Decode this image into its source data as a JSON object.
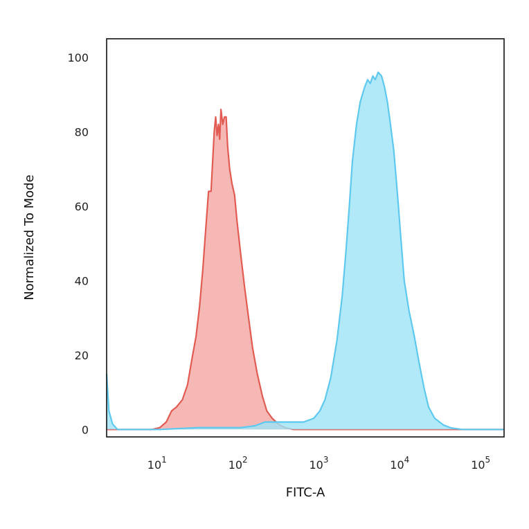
{
  "chart_data": {
    "type": "area",
    "xlabel": "FITC-A",
    "ylabel": "Normalized To Mode",
    "xscale": "log",
    "xlim": [
      2.2,
      180000
    ],
    "ylim": [
      -2,
      105
    ],
    "y_ticks": [
      0,
      20,
      40,
      60,
      80,
      100
    ],
    "x_ticks": [
      {
        "value": 10,
        "base": "10",
        "exp": "1"
      },
      {
        "value": 100,
        "base": "10",
        "exp": "2"
      },
      {
        "value": 1000,
        "base": "10",
        "exp": "3"
      },
      {
        "value": 10000,
        "base": "10",
        "exp": "4"
      },
      {
        "value": 100000,
        "base": "10",
        "exp": "5"
      }
    ],
    "grid": false,
    "legend": "none",
    "series": [
      {
        "stroke": "#e15b52",
        "fill": "#f2a6a3",
        "points": [
          [
            2.2,
            0
          ],
          [
            3,
            0
          ],
          [
            5,
            0
          ],
          [
            8,
            0
          ],
          [
            10,
            0.5
          ],
          [
            12,
            2
          ],
          [
            14,
            5
          ],
          [
            16,
            6
          ],
          [
            19,
            8
          ],
          [
            22,
            12
          ],
          [
            25,
            19
          ],
          [
            28,
            25
          ],
          [
            31,
            33
          ],
          [
            34,
            43
          ],
          [
            37,
            54
          ],
          [
            40,
            64
          ],
          [
            43,
            64
          ],
          [
            45,
            72
          ],
          [
            47,
            80
          ],
          [
            49,
            84
          ],
          [
            51,
            79
          ],
          [
            53,
            82
          ],
          [
            55,
            78
          ],
          [
            57,
            86
          ],
          [
            60,
            82
          ],
          [
            63,
            84
          ],
          [
            66,
            84
          ],
          [
            69,
            76
          ],
          [
            73,
            70
          ],
          [
            78,
            66
          ],
          [
            84,
            63
          ],
          [
            90,
            56
          ],
          [
            100,
            47
          ],
          [
            112,
            38
          ],
          [
            125,
            30
          ],
          [
            140,
            22
          ],
          [
            160,
            15
          ],
          [
            185,
            9
          ],
          [
            210,
            5
          ],
          [
            245,
            3
          ],
          [
            290,
            1.5
          ],
          [
            350,
            0.5
          ],
          [
            450,
            0
          ],
          [
            180000,
            0
          ]
        ]
      },
      {
        "stroke": "#5ec8ee",
        "fill": "#9ee3f8",
        "points": [
          [
            2.2,
            15
          ],
          [
            2.35,
            5
          ],
          [
            2.6,
            1.5
          ],
          [
            3,
            0
          ],
          [
            5,
            0
          ],
          [
            10,
            0
          ],
          [
            30,
            0.5
          ],
          [
            100,
            0.5
          ],
          [
            150,
            1
          ],
          [
            200,
            2
          ],
          [
            300,
            2
          ],
          [
            400,
            2
          ],
          [
            600,
            2
          ],
          [
            800,
            3
          ],
          [
            950,
            5
          ],
          [
            1100,
            8
          ],
          [
            1300,
            14
          ],
          [
            1550,
            24
          ],
          [
            1800,
            36
          ],
          [
            2000,
            48
          ],
          [
            2200,
            60
          ],
          [
            2400,
            72
          ],
          [
            2700,
            82
          ],
          [
            3000,
            88
          ],
          [
            3400,
            92
          ],
          [
            3700,
            94
          ],
          [
            4000,
            93
          ],
          [
            4300,
            95
          ],
          [
            4600,
            94
          ],
          [
            5000,
            96
          ],
          [
            5500,
            95
          ],
          [
            6000,
            92
          ],
          [
            6500,
            88
          ],
          [
            7000,
            83
          ],
          [
            7800,
            75
          ],
          [
            8600,
            64
          ],
          [
            9500,
            52
          ],
          [
            10500,
            40
          ],
          [
            12000,
            32
          ],
          [
            14000,
            25
          ],
          [
            16000,
            18
          ],
          [
            18500,
            11
          ],
          [
            21000,
            6
          ],
          [
            25000,
            3
          ],
          [
            32000,
            1.2
          ],
          [
            40000,
            0.4
          ],
          [
            55000,
            0
          ],
          [
            180000,
            0
          ]
        ]
      }
    ]
  }
}
